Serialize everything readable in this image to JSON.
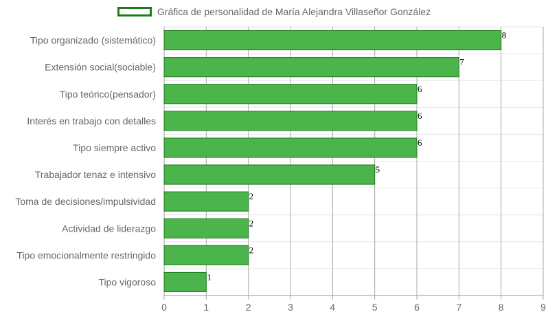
{
  "chart_data": {
    "type": "bar",
    "orientation": "horizontal",
    "categories": [
      "Tipo organizado (sistemático)",
      "Extensión social(sociable)",
      "Tipo teórico(pensador)",
      "Interés en trabajo con detalles",
      "Tipo siempre activo",
      "Trabajador tenaz e intensivo",
      "Toma de decisiones/impulsividad",
      "Actividad de liderazgo",
      "Tipo emocionalmente restringido",
      "Tipo vigoroso"
    ],
    "series": [
      {
        "name": "Gráfica de personalidad de María Alejandra Villaseñor González",
        "values": [
          8,
          7,
          6,
          6,
          6,
          5,
          2,
          2,
          2,
          1
        ],
        "color": "#4bb54b",
        "border_color": "#1b7a1b"
      }
    ],
    "x_ticks": [
      "0",
      "1",
      "2",
      "3",
      "4",
      "5",
      "6",
      "7",
      "8",
      "9"
    ],
    "xlim": [
      0,
      9
    ],
    "grid": true,
    "legend_position": "top",
    "data_labels": true
  }
}
